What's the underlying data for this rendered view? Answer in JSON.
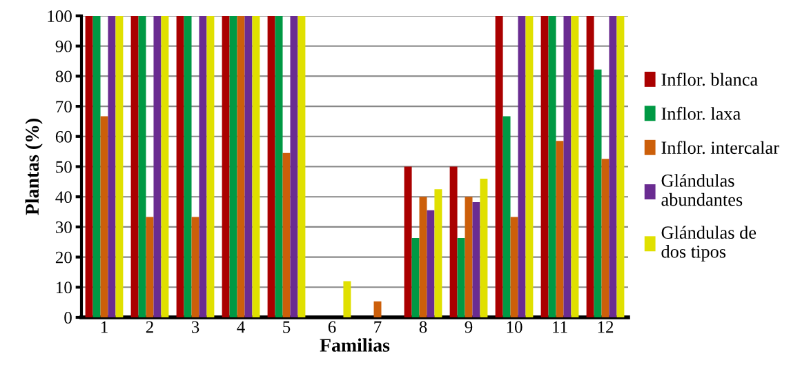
{
  "chart_data": {
    "type": "bar",
    "xlabel": "Familias",
    "ylabel": "Plantas (%)",
    "categories": [
      "1",
      "2",
      "3",
      "4",
      "5",
      "6",
      "7",
      "8",
      "9",
      "10",
      "11",
      "12"
    ],
    "series": [
      {
        "name": "Inflor. blanca",
        "color": "#aa0000",
        "values": [
          100,
          100,
          100,
          100,
          100,
          0,
          0,
          50,
          50,
          100,
          100,
          100
        ]
      },
      {
        "name": "Inflor. laxa",
        "color": "#009944",
        "values": [
          100,
          100,
          100,
          100,
          100,
          0,
          0,
          26.3,
          26.3,
          66.7,
          100,
          82.2
        ]
      },
      {
        "name": "Inflor. intercalar",
        "color": "#cc5f0a",
        "values": [
          66.7,
          33.3,
          33.3,
          100,
          54.5,
          0,
          5.3,
          40,
          40,
          33.3,
          58.5,
          52.6
        ]
      },
      {
        "name": "Glándulas\nabundantes",
        "color": "#6a2c91",
        "values": [
          100,
          100,
          100,
          100,
          100,
          0,
          0,
          35.5,
          38.2,
          100,
          100,
          100
        ]
      },
      {
        "name": "Glándulas de\ndos tipos",
        "color": "#e0e000",
        "values": [
          100,
          100,
          100,
          100,
          100,
          12,
          0,
          42.5,
          46,
          100,
          100,
          100
        ]
      }
    ],
    "ylim": [
      0,
      100
    ],
    "yticks": [
      0,
      10,
      20,
      30,
      40,
      50,
      60,
      70,
      80,
      90,
      100
    ],
    "grid": "y",
    "legend": "right"
  }
}
